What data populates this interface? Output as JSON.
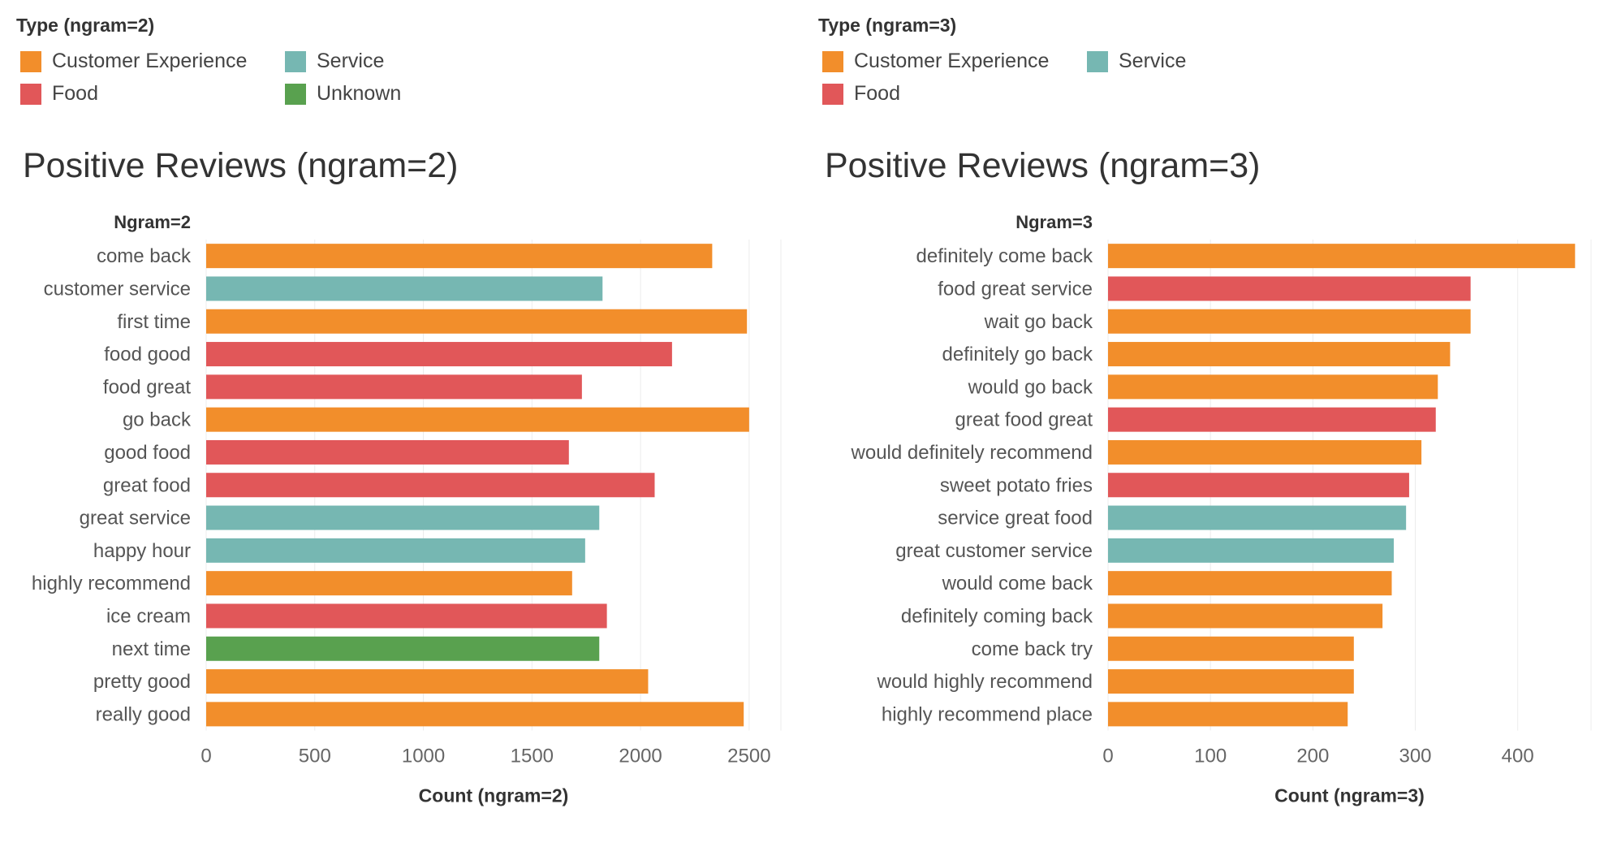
{
  "colors": {
    "Customer Experience": "#F28E2B",
    "Service": "#76B7B2",
    "Food": "#E15759",
    "Unknown": "#59A14F"
  },
  "chart_data": [
    {
      "type": "bar",
      "orientation": "horizontal",
      "title": "Positive Reviews (ngram=2)",
      "category_header": "Ngram=2",
      "xlabel": "Count (ngram=2)",
      "xlim": [
        0,
        2650
      ],
      "xticks": [
        0,
        500,
        1000,
        1500,
        2000,
        2500
      ],
      "grid": true,
      "legend": {
        "title": "Type (ngram=2)",
        "placement": "top-left",
        "entries": [
          "Customer Experience",
          "Service",
          "Food",
          "Unknown"
        ]
      },
      "categories": [
        "come back",
        "customer service",
        "first time",
        "food good",
        "food great",
        "go back",
        "good food",
        "great food",
        "great service",
        "happy hour",
        "highly recommend",
        "ice cream",
        "next time",
        "pretty good",
        "really good"
      ],
      "values": [
        2330,
        1825,
        2490,
        2145,
        1730,
        2500,
        1670,
        2065,
        1810,
        1745,
        1685,
        1845,
        1810,
        2035,
        2475
      ],
      "types": [
        "Customer Experience",
        "Service",
        "Customer Experience",
        "Food",
        "Food",
        "Customer Experience",
        "Food",
        "Food",
        "Service",
        "Service",
        "Customer Experience",
        "Food",
        "Unknown",
        "Customer Experience",
        "Customer Experience"
      ]
    },
    {
      "type": "bar",
      "orientation": "horizontal",
      "title": "Positive Reviews (ngram=3)",
      "category_header": "Ngram=3",
      "xlabel": "Count (ngram=3)",
      "xlim": [
        0,
        470
      ],
      "xticks": [
        0,
        100,
        200,
        300,
        400
      ],
      "grid": true,
      "legend": {
        "title": "Type (ngram=3)",
        "placement": "top-left",
        "entries": [
          "Customer Experience",
          "Service",
          "Food"
        ]
      },
      "categories": [
        "definitely come back",
        "food great service",
        "wait go back",
        "definitely go back",
        "would go back",
        "great food great",
        "would definitely recommend",
        "sweet potato fries",
        "service great food",
        "great customer service",
        "would come back",
        "definitely coming back",
        "come back try",
        "would highly recommend",
        "highly recommend place"
      ],
      "values": [
        456,
        354,
        354,
        334,
        322,
        320,
        306,
        294,
        291,
        279,
        277,
        268,
        240,
        240,
        234
      ],
      "types": [
        "Customer Experience",
        "Food",
        "Customer Experience",
        "Customer Experience",
        "Customer Experience",
        "Food",
        "Customer Experience",
        "Food",
        "Service",
        "Service",
        "Customer Experience",
        "Customer Experience",
        "Customer Experience",
        "Customer Experience",
        "Customer Experience"
      ]
    }
  ]
}
